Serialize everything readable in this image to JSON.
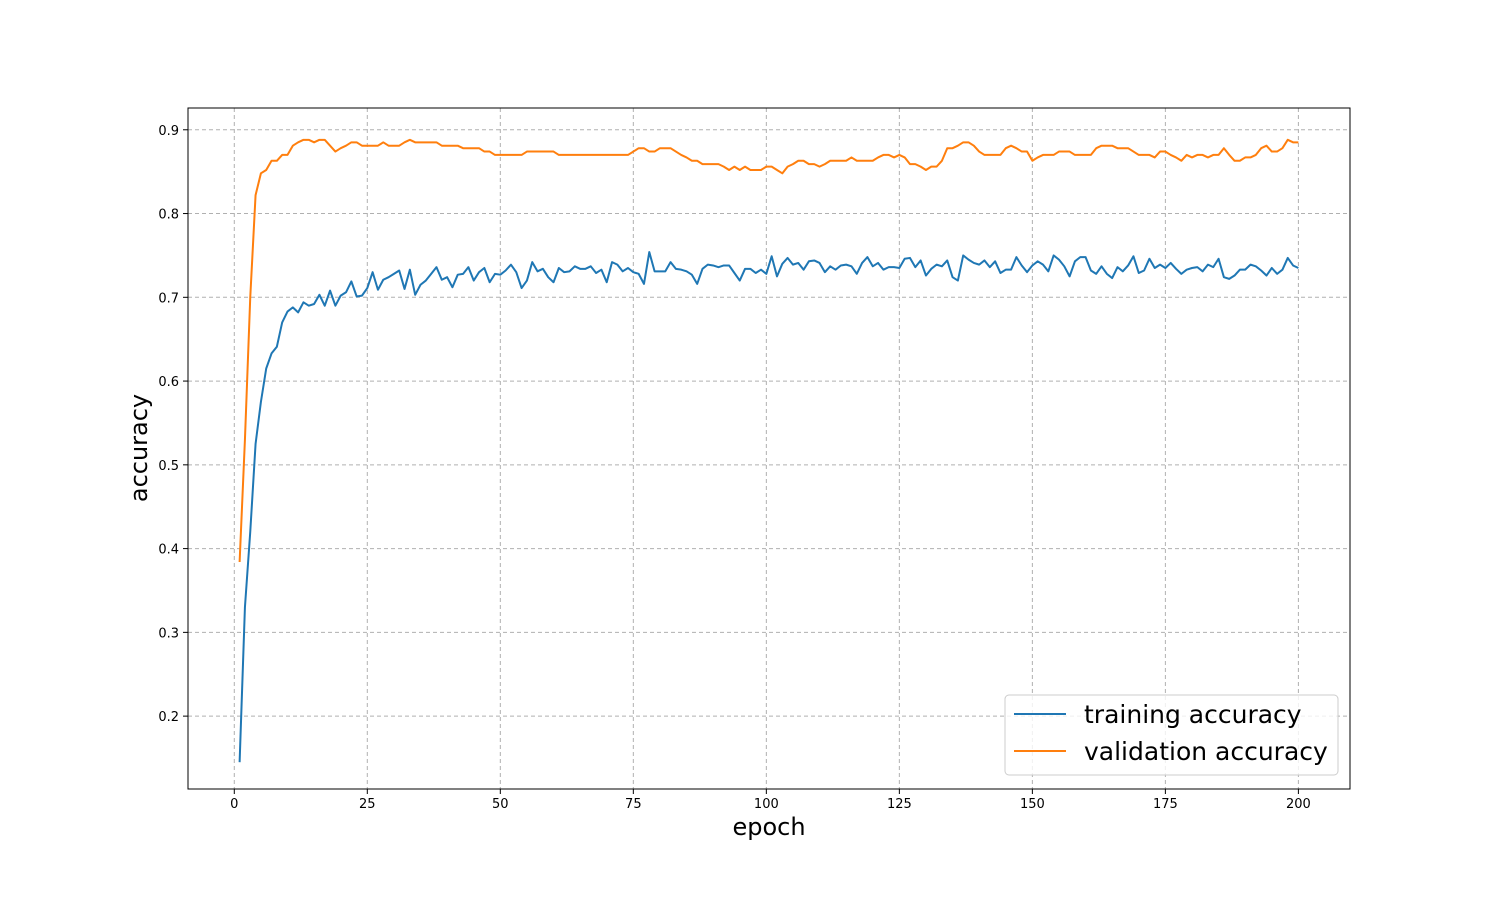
{
  "chart_data": {
    "type": "line",
    "title": "",
    "xlabel": "epoch",
    "ylabel": "accuracy",
    "xlim": [
      -8.7,
      209.7
    ],
    "ylim": [
      0.113,
      0.926
    ],
    "xticks": [
      0,
      25,
      50,
      75,
      100,
      125,
      150,
      175,
      200
    ],
    "yticks": [
      0.2,
      0.3,
      0.4,
      0.5,
      0.6,
      0.7,
      0.8,
      0.9
    ],
    "xtick_labels": [
      "0",
      "25",
      "50",
      "75",
      "100",
      "125",
      "150",
      "175",
      "200"
    ],
    "ytick_labels": [
      "0.2",
      "0.3",
      "0.4",
      "0.5",
      "0.6",
      "0.7",
      "0.8",
      "0.9"
    ],
    "grid": true,
    "legend_position": "lower-right",
    "series": [
      {
        "name": "training accuracy",
        "color": "#1f77b4",
        "x": [
          1,
          2,
          3,
          4,
          5,
          6,
          7,
          8,
          9,
          10,
          11,
          12,
          13,
          14,
          15,
          16,
          17,
          18,
          19,
          20,
          21,
          22,
          23,
          24,
          25,
          26,
          27,
          28,
          29,
          30,
          31,
          32,
          33,
          34,
          35,
          36,
          37,
          38,
          39,
          40,
          41,
          42,
          43,
          44,
          45,
          46,
          47,
          48,
          49,
          50,
          51,
          52,
          53,
          54,
          55,
          56,
          57,
          58,
          59,
          60,
          61,
          62,
          63,
          64,
          65,
          66,
          67,
          68,
          69,
          70,
          71,
          72,
          73,
          74,
          75,
          76,
          77,
          78,
          79,
          80,
          81,
          82,
          83,
          84,
          85,
          86,
          87,
          88,
          89,
          90,
          91,
          92,
          93,
          94,
          95,
          96,
          97,
          98,
          99,
          100,
          101,
          102,
          103,
          104,
          105,
          106,
          107,
          108,
          109,
          110,
          111,
          112,
          113,
          114,
          115,
          116,
          117,
          118,
          119,
          120,
          121,
          122,
          123,
          124,
          125,
          126,
          127,
          128,
          129,
          130,
          131,
          132,
          133,
          134,
          135,
          136,
          137,
          138,
          139,
          140,
          141,
          142,
          143,
          144,
          145,
          146,
          147,
          148,
          149,
          150,
          151,
          152,
          153,
          154,
          155,
          156,
          157,
          158,
          159,
          160,
          161,
          162,
          163,
          164,
          165,
          166,
          167,
          168,
          169,
          170,
          171,
          172,
          173,
          174,
          175,
          176,
          177,
          178,
          179,
          180,
          181,
          182,
          183,
          184,
          185,
          186,
          187,
          188,
          189,
          190,
          191,
          192,
          193,
          194,
          195,
          196,
          197,
          198,
          199,
          200
        ],
        "y": [
          0.145,
          0.33,
          0.42,
          0.525,
          0.575,
          0.615,
          0.633,
          0.641,
          0.67,
          0.683,
          0.688,
          0.682,
          0.694,
          0.69,
          0.692,
          0.703,
          0.69,
          0.708,
          0.69,
          0.702,
          0.706,
          0.719,
          0.701,
          0.702,
          0.711,
          0.73,
          0.709,
          0.721,
          0.724,
          0.728,
          0.732,
          0.71,
          0.733,
          0.703,
          0.715,
          0.72,
          0.728,
          0.736,
          0.721,
          0.724,
          0.712,
          0.727,
          0.728,
          0.736,
          0.72,
          0.73,
          0.735,
          0.718,
          0.728,
          0.727,
          0.732,
          0.739,
          0.73,
          0.711,
          0.72,
          0.742,
          0.731,
          0.734,
          0.724,
          0.718,
          0.735,
          0.73,
          0.731,
          0.737,
          0.734,
          0.734,
          0.737,
          0.729,
          0.733,
          0.718,
          0.742,
          0.739,
          0.731,
          0.735,
          0.73,
          0.728,
          0.716,
          0.754,
          0.731,
          0.731,
          0.731,
          0.742,
          0.734,
          0.733,
          0.731,
          0.727,
          0.716,
          0.734,
          0.739,
          0.738,
          0.736,
          0.738,
          0.738,
          0.729,
          0.72,
          0.734,
          0.734,
          0.729,
          0.733,
          0.728,
          0.749,
          0.725,
          0.74,
          0.747,
          0.739,
          0.741,
          0.733,
          0.743,
          0.744,
          0.741,
          0.73,
          0.737,
          0.733,
          0.738,
          0.739,
          0.737,
          0.728,
          0.741,
          0.748,
          0.737,
          0.741,
          0.733,
          0.736,
          0.736,
          0.735,
          0.746,
          0.747,
          0.736,
          0.744,
          0.726,
          0.734,
          0.739,
          0.737,
          0.744,
          0.724,
          0.72,
          0.75,
          0.745,
          0.741,
          0.739,
          0.744,
          0.736,
          0.743,
          0.729,
          0.733,
          0.733,
          0.748,
          0.738,
          0.73,
          0.738,
          0.743,
          0.739,
          0.731,
          0.75,
          0.745,
          0.737,
          0.725,
          0.743,
          0.748,
          0.748,
          0.732,
          0.728,
          0.737,
          0.728,
          0.723,
          0.736,
          0.731,
          0.738,
          0.749,
          0.729,
          0.732,
          0.746,
          0.735,
          0.739,
          0.735,
          0.741,
          0.734,
          0.728,
          0.733,
          0.735,
          0.736,
          0.731,
          0.739,
          0.736,
          0.746,
          0.724,
          0.722,
          0.726,
          0.733,
          0.733,
          0.739,
          0.737,
          0.732,
          0.726,
          0.735,
          0.728,
          0.733,
          0.747,
          0.738,
          0.735
        ]
      },
      {
        "name": "validation accuracy",
        "color": "#ff7f0e",
        "x": [
          1,
          2,
          3,
          4,
          5,
          6,
          7,
          8,
          9,
          10,
          11,
          12,
          13,
          14,
          15,
          16,
          17,
          18,
          19,
          20,
          21,
          22,
          23,
          24,
          25,
          26,
          27,
          28,
          29,
          30,
          31,
          32,
          33,
          34,
          35,
          36,
          37,
          38,
          39,
          40,
          41,
          42,
          43,
          44,
          45,
          46,
          47,
          48,
          49,
          50,
          51,
          52,
          53,
          54,
          55,
          56,
          57,
          58,
          59,
          60,
          61,
          62,
          63,
          64,
          65,
          66,
          67,
          68,
          69,
          70,
          71,
          72,
          73,
          74,
          75,
          76,
          77,
          78,
          79,
          80,
          81,
          82,
          83,
          84,
          85,
          86,
          87,
          88,
          89,
          90,
          91,
          92,
          93,
          94,
          95,
          96,
          97,
          98,
          99,
          100,
          101,
          102,
          103,
          104,
          105,
          106,
          107,
          108,
          109,
          110,
          111,
          112,
          113,
          114,
          115,
          116,
          117,
          118,
          119,
          120,
          121,
          122,
          123,
          124,
          125,
          126,
          127,
          128,
          129,
          130,
          131,
          132,
          133,
          134,
          135,
          136,
          137,
          138,
          139,
          140,
          141,
          142,
          143,
          144,
          145,
          146,
          147,
          148,
          149,
          150,
          151,
          152,
          153,
          154,
          155,
          156,
          157,
          158,
          159,
          160,
          161,
          162,
          163,
          164,
          165,
          166,
          167,
          168,
          169,
          170,
          171,
          172,
          173,
          174,
          175,
          176,
          177,
          178,
          179,
          180,
          181,
          182,
          183,
          184,
          185,
          186,
          187,
          188,
          189,
          190,
          191,
          192,
          193,
          194,
          195,
          196,
          197,
          198,
          199,
          200
        ],
        "y": [
          0.384,
          0.53,
          0.7,
          0.822,
          0.848,
          0.852,
          0.863,
          0.863,
          0.87,
          0.87,
          0.881,
          0.885,
          0.888,
          0.888,
          0.885,
          0.888,
          0.888,
          0.881,
          0.874,
          0.878,
          0.881,
          0.885,
          0.885,
          0.881,
          0.881,
          0.881,
          0.881,
          0.885,
          0.881,
          0.881,
          0.881,
          0.885,
          0.888,
          0.885,
          0.885,
          0.885,
          0.885,
          0.885,
          0.881,
          0.881,
          0.881,
          0.881,
          0.878,
          0.878,
          0.878,
          0.878,
          0.874,
          0.874,
          0.87,
          0.87,
          0.87,
          0.87,
          0.87,
          0.87,
          0.874,
          0.874,
          0.874,
          0.874,
          0.874,
          0.874,
          0.87,
          0.87,
          0.87,
          0.87,
          0.87,
          0.87,
          0.87,
          0.87,
          0.87,
          0.87,
          0.87,
          0.87,
          0.87,
          0.87,
          0.874,
          0.878,
          0.878,
          0.874,
          0.874,
          0.878,
          0.878,
          0.878,
          0.874,
          0.87,
          0.867,
          0.863,
          0.863,
          0.859,
          0.859,
          0.859,
          0.859,
          0.856,
          0.852,
          0.856,
          0.852,
          0.856,
          0.852,
          0.852,
          0.852,
          0.856,
          0.856,
          0.852,
          0.848,
          0.856,
          0.859,
          0.863,
          0.863,
          0.859,
          0.859,
          0.856,
          0.859,
          0.863,
          0.863,
          0.863,
          0.863,
          0.867,
          0.863,
          0.863,
          0.863,
          0.863,
          0.867,
          0.87,
          0.87,
          0.867,
          0.87,
          0.867,
          0.859,
          0.859,
          0.856,
          0.852,
          0.856,
          0.856,
          0.863,
          0.878,
          0.878,
          0.881,
          0.885,
          0.885,
          0.881,
          0.874,
          0.87,
          0.87,
          0.87,
          0.87,
          0.878,
          0.881,
          0.878,
          0.874,
          0.874,
          0.863,
          0.867,
          0.87,
          0.87,
          0.87,
          0.874,
          0.874,
          0.874,
          0.87,
          0.87,
          0.87,
          0.87,
          0.878,
          0.881,
          0.881,
          0.881,
          0.878,
          0.878,
          0.878,
          0.874,
          0.87,
          0.87,
          0.87,
          0.867,
          0.874,
          0.874,
          0.87,
          0.867,
          0.863,
          0.87,
          0.867,
          0.87,
          0.87,
          0.867,
          0.87,
          0.87,
          0.878,
          0.87,
          0.863,
          0.863,
          0.867,
          0.867,
          0.87,
          0.878,
          0.881,
          0.874,
          0.874,
          0.878,
          0.888,
          0.885,
          0.885
        ]
      }
    ]
  }
}
